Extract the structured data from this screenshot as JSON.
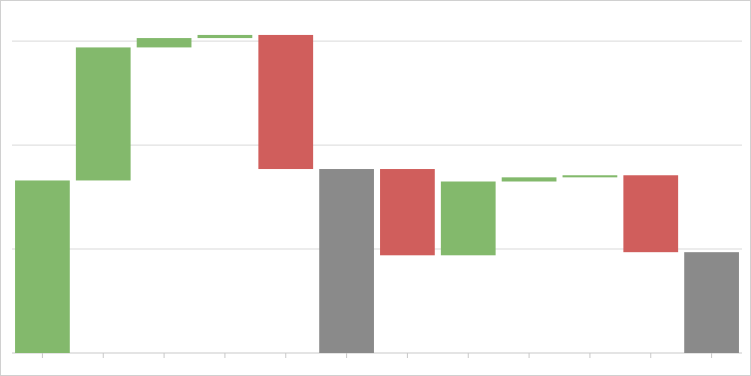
{
  "chart_data": {
    "type": "waterfall",
    "categories": [
      null,
      null,
      null,
      null,
      null,
      null,
      null,
      null,
      null,
      null,
      null,
      null
    ],
    "values": [
      166,
      128,
      9,
      3,
      -129,
      177,
      -83,
      71,
      4,
      2,
      -74,
      97
    ],
    "kinds": [
      "increase",
      "increase",
      "increase",
      "increase",
      "decrease",
      "total",
      "decrease",
      "increase",
      "increase",
      "increase",
      "decrease",
      "total"
    ],
    "colors": {
      "increase": "#83b96c",
      "decrease": "#d05e5c",
      "total": "#8a8a8a"
    },
    "ylim": [
      0,
      330
    ],
    "yticks": [
      0,
      100,
      200,
      300
    ],
    "grid": true
  }
}
